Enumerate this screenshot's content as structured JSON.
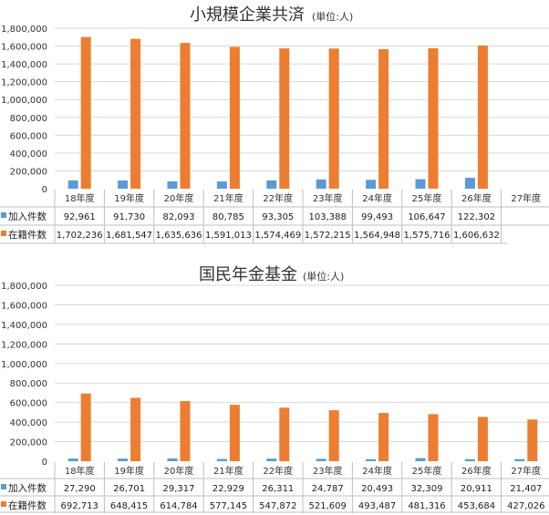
{
  "chart_data": [
    {
      "type": "bar",
      "title": "小規模企業共済",
      "unit": "(単位:人)",
      "categories": [
        "18年度",
        "19年度",
        "20年度",
        "21年度",
        "22年度",
        "23年度",
        "24年度",
        "25年度",
        "26年度",
        "27年度"
      ],
      "ylim": [
        0,
        1800000
      ],
      "yticks": [
        "0",
        "200,000",
        "400,000",
        "600,000",
        "800,000",
        "1,000,000",
        "1,200,000",
        "1,400,000",
        "1,600,000",
        "1,800,000"
      ],
      "grid": true,
      "legend": "data-table",
      "series": [
        {
          "name": "加入件数",
          "color": "#5b9bd5",
          "values": [
            92961,
            91730,
            82093,
            80785,
            93305,
            103388,
            99493,
            106647,
            122302,
            null
          ],
          "labels": [
            "92,961",
            "91,730",
            "82,093",
            "80,785",
            "93,305",
            "103,388",
            "99,493",
            "106,647",
            "122,302",
            ""
          ]
        },
        {
          "name": "在籍件数",
          "color": "#ed7d31",
          "values": [
            1702236,
            1681547,
            1635636,
            1591013,
            1574469,
            1572215,
            1564948,
            1575716,
            1606632,
            null
          ],
          "labels": [
            "1,702,236",
            "1,681,547",
            "1,635,636",
            "1,591,013",
            "1,574,469",
            "1,572,215",
            "1,564,948",
            "1,575,716",
            "1,606,632",
            ""
          ]
        }
      ]
    },
    {
      "type": "bar",
      "title": "国民年金基金",
      "unit": "(単位:人)",
      "categories": [
        "18年度",
        "19年度",
        "20年度",
        "21年度",
        "22年度",
        "23年度",
        "24年度",
        "25年度",
        "26年度",
        "27年度"
      ],
      "ylim": [
        0,
        1800000
      ],
      "yticks": [
        "0",
        "200,000",
        "400,000",
        "600,000",
        "800,000",
        "1,000,000",
        "1,200,000",
        "1,400,000",
        "1,600,000",
        "1,800,000"
      ],
      "grid": true,
      "legend": "data-table",
      "series": [
        {
          "name": "加入件数",
          "color": "#5b9bd5",
          "values": [
            27290,
            26701,
            29317,
            22929,
            26311,
            24787,
            20493,
            32309,
            20911,
            21407
          ],
          "labels": [
            "27,290",
            "26,701",
            "29,317",
            "22,929",
            "26,311",
            "24,787",
            "20,493",
            "32,309",
            "20,911",
            "21,407"
          ]
        },
        {
          "name": "在籍件数",
          "color": "#ed7d31",
          "values": [
            692713,
            648415,
            614784,
            577145,
            547872,
            521609,
            493487,
            481316,
            453684,
            427026
          ],
          "labels": [
            "692,713",
            "648,415",
            "614,784",
            "577,145",
            "547,872",
            "521,609",
            "493,487",
            "481,316",
            "453,684",
            "427,026"
          ]
        }
      ]
    }
  ]
}
